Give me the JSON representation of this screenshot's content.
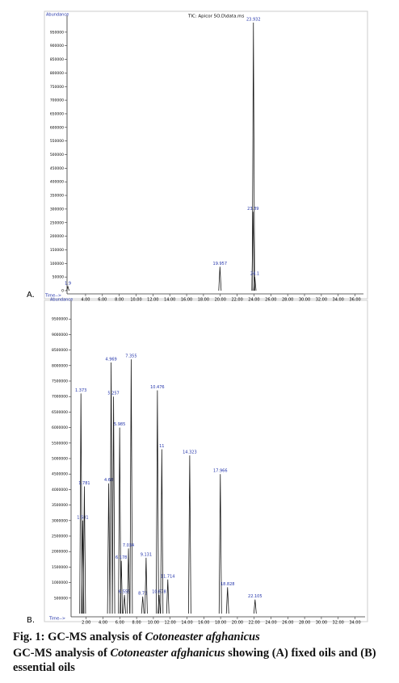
{
  "chart_data": [
    {
      "type": "chromatogram",
      "panel": "A.",
      "title": "TIC: Apicor 5O.D\\data.ms",
      "y_label": "Abundance",
      "x_label": "Time-->",
      "color": "#1a1a1a",
      "x": [
        1.9,
        19.957,
        23.89,
        23.932,
        24.1
      ],
      "values": [
        15000,
        88000,
        290000,
        985000,
        50000
      ],
      "xlim": [
        1.8,
        37
      ],
      "xticks": [
        {
          "value": 4,
          "label": "4.00"
        },
        {
          "value": 6,
          "label": "6.00"
        },
        {
          "value": 8,
          "label": "8.00"
        },
        {
          "value": 10,
          "label": "10.00"
        },
        {
          "value": 12,
          "label": "12.00"
        },
        {
          "value": 14,
          "label": "14.00"
        },
        {
          "value": 16,
          "label": "16.00"
        },
        {
          "value": 18,
          "label": "18.00"
        },
        {
          "value": 20,
          "label": "20.00"
        },
        {
          "value": 22,
          "label": "22.00"
        },
        {
          "value": 24,
          "label": "24.00"
        },
        {
          "value": 26,
          "label": "26.00"
        },
        {
          "value": 28,
          "label": "28.00"
        },
        {
          "value": 30,
          "label": "30.00"
        },
        {
          "value": 32,
          "label": "32.00"
        },
        {
          "value": 34,
          "label": "34.00"
        },
        {
          "value": 36,
          "label": "36.00"
        }
      ],
      "ylim": [
        0,
        1000000
      ],
      "yticks": [
        0,
        50000,
        100000,
        150000,
        200000,
        250000,
        300000,
        350000,
        400000,
        450000,
        500000,
        550000,
        600000,
        650000,
        700000,
        750000,
        800000,
        850000,
        900000,
        950000
      ]
    },
    {
      "type": "chromatogram",
      "panel": "B.",
      "y_label": "Abundance",
      "x_label": "Time-->",
      "color": "#1a1a1a",
      "x": [
        1.373,
        1.581,
        1.781,
        4.68,
        4.969,
        5.257,
        5.985,
        6.178,
        6.555,
        7.355,
        7.034,
        8.73,
        9.131,
        10.476,
        10.678,
        11.0,
        11.714,
        14.323,
        17.966,
        18.828,
        22.105
      ],
      "values": [
        7100000,
        3000000,
        4100000,
        4200000,
        8100000,
        7000000,
        6000000,
        1700000,
        600000,
        8200000,
        2100000,
        550000,
        1800000,
        7200000,
        600000,
        5300000,
        1100000,
        5100000,
        4500000,
        850000,
        450000
      ],
      "xlim": [
        0.2,
        35.2
      ],
      "xticks": [
        {
          "value": 2,
          "label": "2.00"
        },
        {
          "value": 4,
          "label": "4.00"
        },
        {
          "value": 6,
          "label": "6.00"
        },
        {
          "value": 8,
          "label": "8.00"
        },
        {
          "value": 10,
          "label": "10.00"
        },
        {
          "value": 12,
          "label": "12.00"
        },
        {
          "value": 14,
          "label": "14.00"
        },
        {
          "value": 16,
          "label": "16.00"
        },
        {
          "value": 18,
          "label": "18.00"
        },
        {
          "value": 20,
          "label": "20.00"
        },
        {
          "value": 22,
          "label": "22.00"
        },
        {
          "value": 24,
          "label": "24.00"
        },
        {
          "value": 26,
          "label": "26.00"
        },
        {
          "value": 28,
          "label": "28.00"
        },
        {
          "value": 30,
          "label": "30.00"
        },
        {
          "value": 32,
          "label": "32.00"
        },
        {
          "value": 34,
          "label": "34.00"
        }
      ],
      "ylim": [
        0,
        10000000
      ],
      "yticks": [
        500000,
        1000000,
        1500000,
        2000000,
        2500000,
        3000000,
        3500000,
        4000000,
        4500000,
        5000000,
        5500000,
        6000000,
        6500000,
        7000000,
        7500000,
        8000000,
        8500000,
        9000000,
        9500000
      ]
    }
  ],
  "caption": {
    "title_prefix": "Fig. 1: GC-MS analysis of",
    "title_species": "Cotoneaster afghanicus",
    "text_prefix": "GC-MS analysis of",
    "text_species": "Cotoneaster afghanicus",
    "text_suffix": "showing (A) fixed oils and (B) essential oils"
  }
}
